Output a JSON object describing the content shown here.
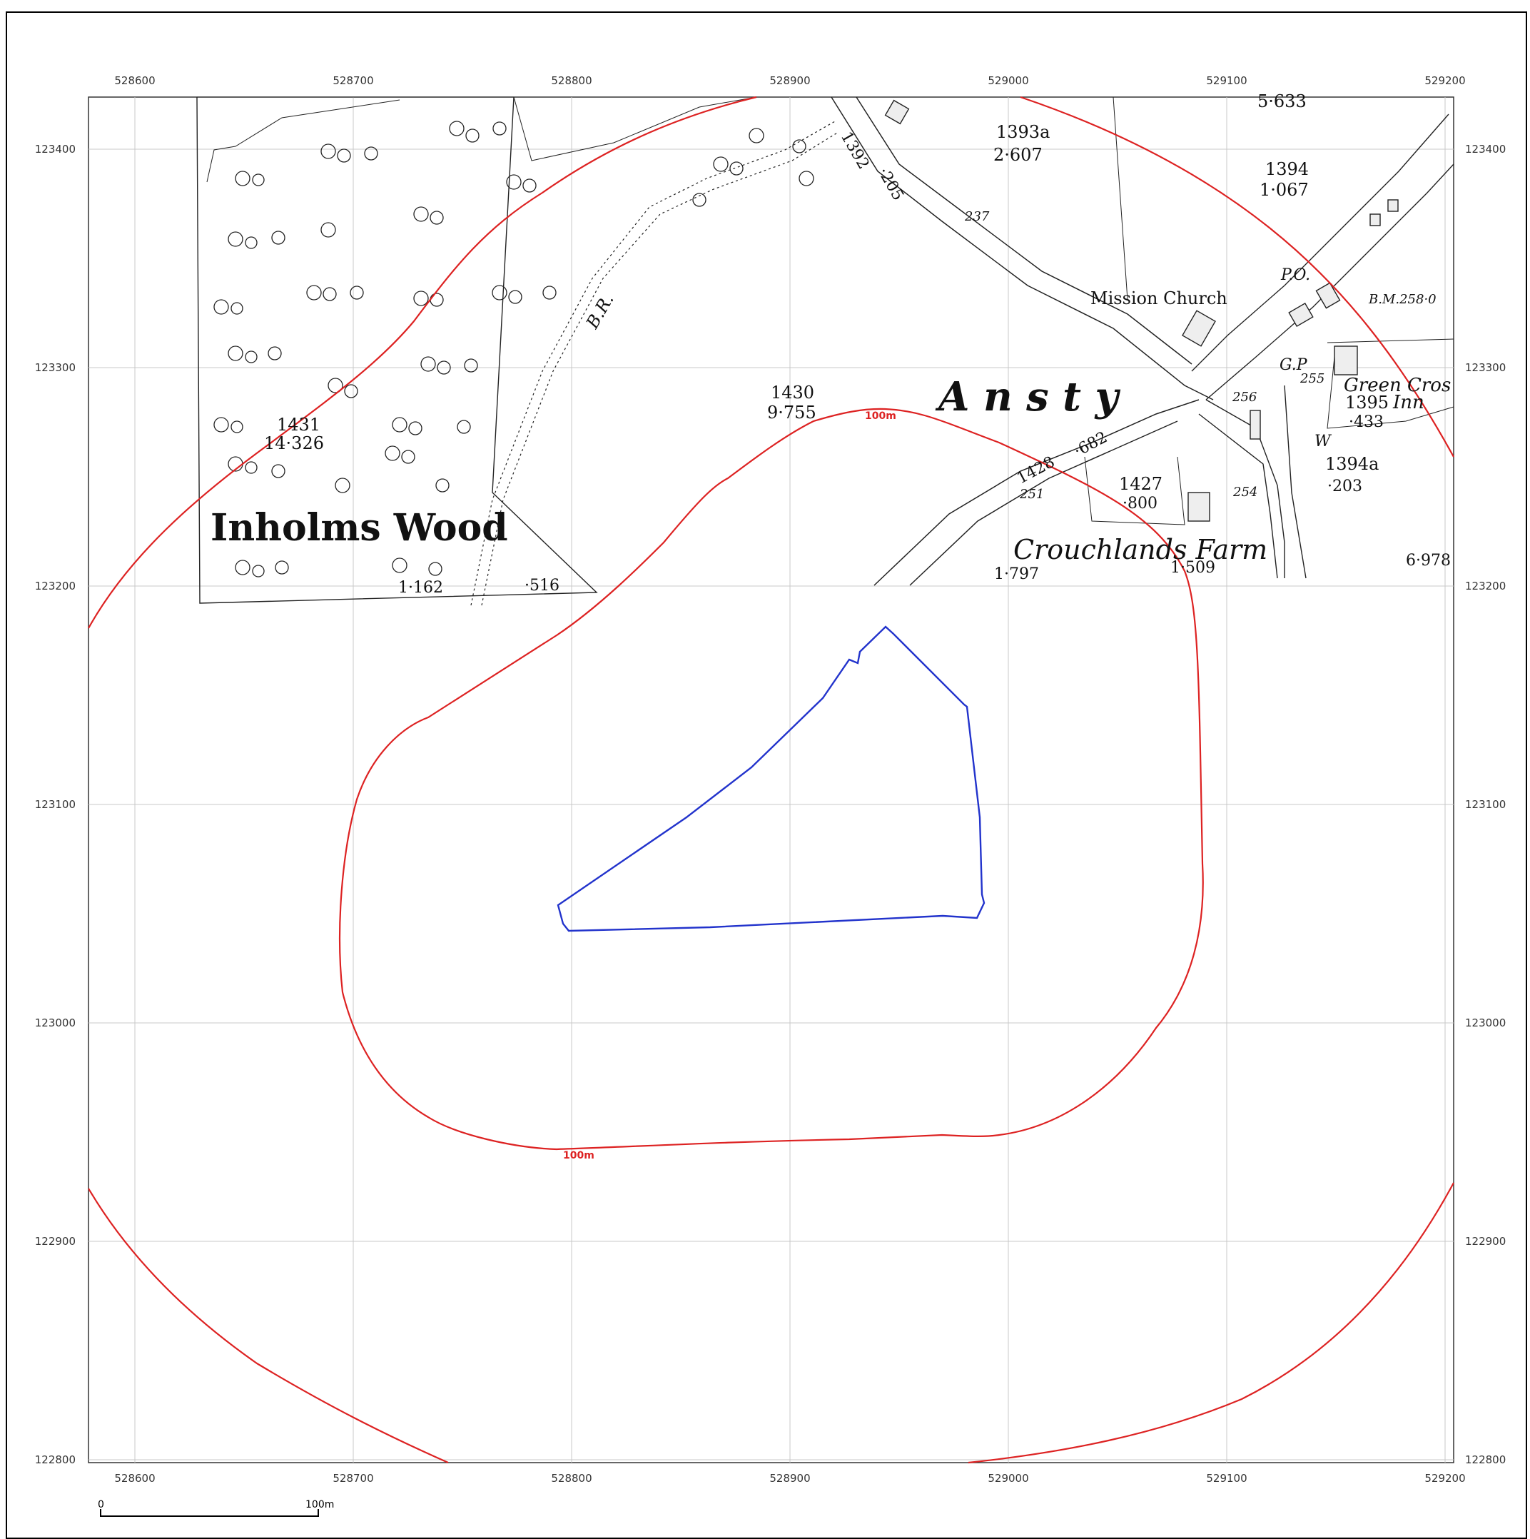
{
  "axes": {
    "easting_ticks": [
      "528600",
      "528700",
      "528800",
      "528900",
      "529000",
      "529100",
      "529200"
    ],
    "northing_ticks": [
      "123400",
      "123300",
      "123200",
      "123100",
      "123000",
      "122900",
      "122800"
    ]
  },
  "buffer": {
    "label": "100m",
    "label_bottom": "100m",
    "color": "#dd2222"
  },
  "site": {
    "color": "#2233cc"
  },
  "scale_bar": {
    "start": "0",
    "end": "100m"
  },
  "places": {
    "wood": "Inholms Wood",
    "village": "A n s t y",
    "farm": "Crouchlands Farm",
    "church": "Mission Church",
    "inn_line1": "Green Cros",
    "inn_line2": "Inn",
    "post_office": "P.O.",
    "guide_post": "G.P",
    "well": "W",
    "bridle_road": "B.R.",
    "bench_mark": "B.M.258·0"
  },
  "parcels": [
    {
      "id": "1431",
      "area": "14·326"
    },
    {
      "id": "1430",
      "area": "9·755"
    },
    {
      "id": "1393a",
      "area": "2·607"
    },
    {
      "id": "1394",
      "area": "1·067"
    },
    {
      "id": "1395",
      "area": "·433"
    },
    {
      "id": "1394a",
      "area": "·203"
    },
    {
      "id": "1427",
      "area": "·800"
    },
    {
      "id": "1392",
      "area": "·205"
    },
    {
      "id": "1428",
      "area": "·682"
    }
  ],
  "loose_areas": [
    "5·633",
    "1·162",
    "·516",
    "1·797",
    "1·509",
    "6·978"
  ],
  "spot_heights": [
    "237",
    "251",
    "254",
    "255",
    "256"
  ]
}
